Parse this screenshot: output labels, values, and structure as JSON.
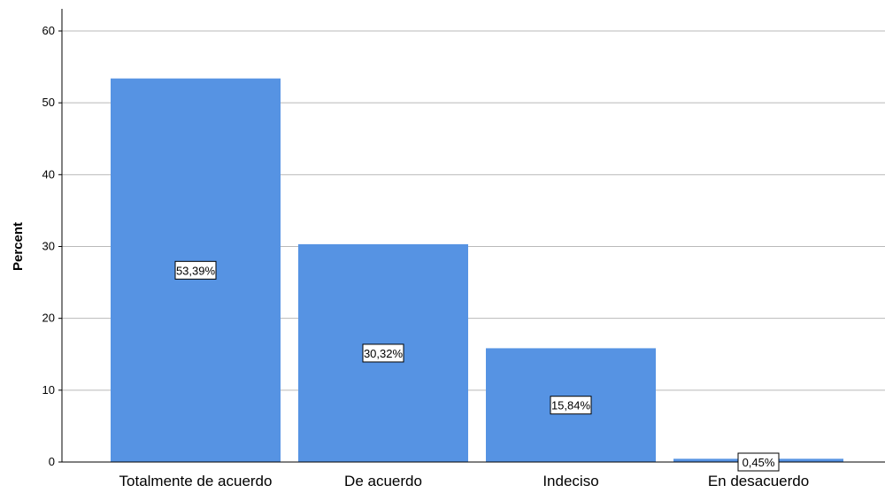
{
  "chart_data": {
    "type": "bar",
    "categories": [
      "Totalmente de acuerdo",
      "De acuerdo",
      "Indeciso",
      "En desacuerdo"
    ],
    "values": [
      53.39,
      30.32,
      15.84,
      0.45
    ],
    "data_labels": [
      "53,39%",
      "30,32%",
      "15,84%",
      "0,45%"
    ],
    "ylabel": "Percent",
    "xlabel": "",
    "ylim": [
      0,
      60
    ],
    "yticks": [
      "0",
      "10",
      "20",
      "30",
      "40",
      "50",
      "60"
    ],
    "grid": true,
    "bar_color": "#5693e3"
  }
}
